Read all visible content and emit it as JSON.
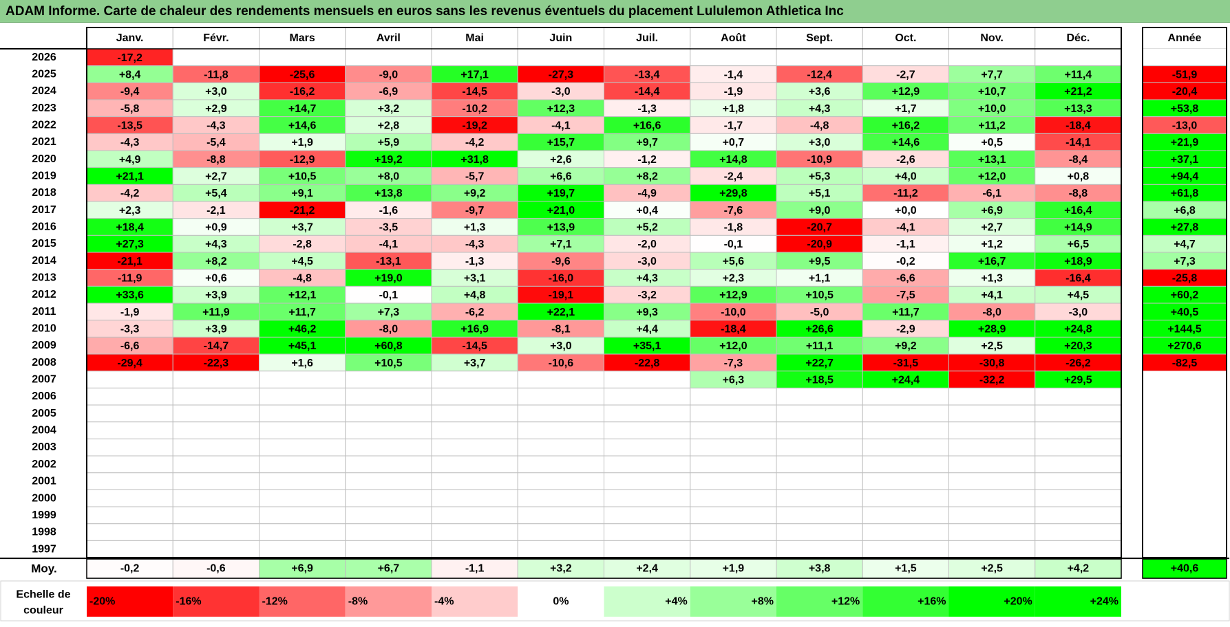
{
  "title": "ADAM Informe. Carte de chaleur des rendements mensuels en euros sans les revenus éventuels du placement Lululemon Athletica Inc",
  "chart_data": {
    "type": "heatmap",
    "months": [
      "Janv.",
      "Févr.",
      "Mars",
      "Avril",
      "Mai",
      "Juin",
      "Juil.",
      "Août",
      "Sept.",
      "Oct.",
      "Nov.",
      "Déc."
    ],
    "annual_header": "Année",
    "avg_label": "Moy.",
    "scale_label_lines": [
      "Echelle de",
      "couleur"
    ],
    "years": [
      "2026",
      "2025",
      "2024",
      "2023",
      "2022",
      "2021",
      "2020",
      "2019",
      "2018",
      "2017",
      "2016",
      "2015",
      "2014",
      "2013",
      "2012",
      "2011",
      "2010",
      "2009",
      "2008",
      "2007",
      "2006",
      "2005",
      "2004",
      "2003",
      "2002",
      "2001",
      "2000",
      "1999",
      "1998",
      "1997"
    ],
    "values": [
      [
        "-17,2",
        null,
        null,
        null,
        null,
        null,
        null,
        null,
        null,
        null,
        null,
        null
      ],
      [
        "+8,4",
        "-11,8",
        "-25,6",
        "-9,0",
        "+17,1",
        "-27,3",
        "-13,4",
        "-1,4",
        "-12,4",
        "-2,7",
        "+7,7",
        "+11,4"
      ],
      [
        "-9,4",
        "+3,0",
        "-16,2",
        "-6,9",
        "-14,5",
        "-3,0",
        "-14,4",
        "-1,9",
        "+3,6",
        "+12,9",
        "+10,7",
        "+21,2"
      ],
      [
        "-5,8",
        "+2,9",
        "+14,7",
        "+3,2",
        "-10,2",
        "+12,3",
        "-1,3",
        "+1,8",
        "+4,3",
        "+1,7",
        "+10,0",
        "+13,3"
      ],
      [
        "-13,5",
        "-4,3",
        "+14,6",
        "+2,8",
        "-19,2",
        "-4,1",
        "+16,6",
        "-1,7",
        "-4,8",
        "+16,2",
        "+11,2",
        "-18,4"
      ],
      [
        "-4,3",
        "-5,4",
        "+1,9",
        "+5,9",
        "-4,2",
        "+15,7",
        "+9,7",
        "+0,7",
        "+3,0",
        "+14,6",
        "+0,5",
        "-14,1"
      ],
      [
        "+4,9",
        "-8,8",
        "-12,9",
        "+19,2",
        "+31,8",
        "+2,6",
        "-1,2",
        "+14,8",
        "-10,9",
        "-2,6",
        "+13,1",
        "-8,4"
      ],
      [
        "+21,1",
        "+2,7",
        "+10,5",
        "+8,0",
        "-5,7",
        "+6,6",
        "+8,2",
        "-2,4",
        "+5,3",
        "+4,0",
        "+12,0",
        "+0,8"
      ],
      [
        "-4,2",
        "+5,4",
        "+9,1",
        "+13,8",
        "+9,2",
        "+19,7",
        "-4,9",
        "+29,8",
        "+5,1",
        "-11,2",
        "-6,1",
        "-8,8"
      ],
      [
        "+2,3",
        "-2,1",
        "-21,2",
        "-1,6",
        "-9,7",
        "+21,0",
        "+0,4",
        "-7,6",
        "+9,0",
        "+0,0",
        "+6,9",
        "+16,4"
      ],
      [
        "+18,4",
        "+0,9",
        "+3,7",
        "-3,5",
        "+1,3",
        "+13,9",
        "+5,2",
        "-1,8",
        "-20,7",
        "-4,1",
        "+2,7",
        "+14,9"
      ],
      [
        "+27,3",
        "+4,3",
        "-2,8",
        "-4,1",
        "-4,3",
        "+7,1",
        "-2,0",
        "-0,1",
        "-20,9",
        "-1,1",
        "+1,2",
        "+6,5"
      ],
      [
        "-21,1",
        "+8,2",
        "+4,5",
        "-13,1",
        "-1,3",
        "-9,6",
        "-3,0",
        "+5,6",
        "+9,5",
        "-0,2",
        "+16,7",
        "+18,9"
      ],
      [
        "-11,9",
        "+0,6",
        "-4,8",
        "+19,0",
        "+3,1",
        "-16,0",
        "+4,3",
        "+2,3",
        "+1,1",
        "-6,6",
        "+1,3",
        "-16,4"
      ],
      [
        "+33,6",
        "+3,9",
        "+12,1",
        "-0,1",
        "+4,8",
        "-19,1",
        "-3,2",
        "+12,9",
        "+10,5",
        "-7,5",
        "+4,1",
        "+4,5"
      ],
      [
        "-1,9",
        "+11,9",
        "+11,7",
        "+7,3",
        "-6,2",
        "+22,1",
        "+9,3",
        "-10,0",
        "-5,0",
        "+11,7",
        "-8,0",
        "-3,0"
      ],
      [
        "-3,3",
        "+3,9",
        "+46,2",
        "-8,0",
        "+16,9",
        "-8,1",
        "+4,4",
        "-18,4",
        "+26,6",
        "-2,9",
        "+28,9",
        "+24,8"
      ],
      [
        "-6,6",
        "-14,7",
        "+45,1",
        "+60,8",
        "-14,5",
        "+3,0",
        "+35,1",
        "+12,0",
        "+11,1",
        "+9,2",
        "+2,5",
        "+20,3"
      ],
      [
        "-29,4",
        "-22,3",
        "+1,6",
        "+10,5",
        "+3,7",
        "-10,6",
        "-22,8",
        "-7,3",
        "+22,7",
        "-31,5",
        "-30,8",
        "-26,2"
      ],
      [
        null,
        null,
        null,
        null,
        null,
        null,
        null,
        "+6,3",
        "+18,5",
        "+24,4",
        "-32,2",
        "+29,5"
      ],
      [
        null,
        null,
        null,
        null,
        null,
        null,
        null,
        null,
        null,
        null,
        null,
        null
      ],
      [
        null,
        null,
        null,
        null,
        null,
        null,
        null,
        null,
        null,
        null,
        null,
        null
      ],
      [
        null,
        null,
        null,
        null,
        null,
        null,
        null,
        null,
        null,
        null,
        null,
        null
      ],
      [
        null,
        null,
        null,
        null,
        null,
        null,
        null,
        null,
        null,
        null,
        null,
        null
      ],
      [
        null,
        null,
        null,
        null,
        null,
        null,
        null,
        null,
        null,
        null,
        null,
        null
      ],
      [
        null,
        null,
        null,
        null,
        null,
        null,
        null,
        null,
        null,
        null,
        null,
        null
      ],
      [
        null,
        null,
        null,
        null,
        null,
        null,
        null,
        null,
        null,
        null,
        null,
        null
      ],
      [
        null,
        null,
        null,
        null,
        null,
        null,
        null,
        null,
        null,
        null,
        null,
        null
      ],
      [
        null,
        null,
        null,
        null,
        null,
        null,
        null,
        null,
        null,
        null,
        null,
        null
      ],
      [
        null,
        null,
        null,
        null,
        null,
        null,
        null,
        null,
        null,
        null,
        null,
        null
      ]
    ],
    "annual": [
      null,
      "-51,9",
      "-20,4",
      "+53,8",
      "-13,0",
      "+21,9",
      "+37,1",
      "+94,4",
      "+61,8",
      "+6,8",
      "+27,8",
      "+4,7",
      "+7,3",
      "-25,8",
      "+60,2",
      "+40,5",
      "+144,5",
      "+270,6",
      "-82,5",
      null,
      null,
      null,
      null,
      null,
      null,
      null,
      null,
      null,
      null,
      null
    ],
    "averages": [
      "-0,2",
      "-0,6",
      "+6,9",
      "+6,7",
      "-1,1",
      "+3,2",
      "+2,4",
      "+1,9",
      "+3,8",
      "+1,5",
      "+2,5",
      "+4,2"
    ],
    "average_annual": "+40,6",
    "scale": [
      {
        "label": "-20%",
        "value": -20
      },
      {
        "label": "-16%",
        "value": -16
      },
      {
        "label": "-12%",
        "value": -12
      },
      {
        "label": "-8%",
        "value": -8
      },
      {
        "label": "-4%",
        "value": -4
      },
      {
        "label": "0%",
        "value": 0
      },
      {
        "label": "+4%",
        "value": 4
      },
      {
        "label": "+8%",
        "value": 8
      },
      {
        "label": "+12%",
        "value": 12
      },
      {
        "label": "+16%",
        "value": 16
      },
      {
        "label": "+20%",
        "value": 20
      },
      {
        "label": "+24%",
        "value": 24
      }
    ],
    "colors": {
      "negative": "#ff0000",
      "positive": "#00ff00",
      "neutral": "#ffffff",
      "title_bar": "#8fce8f"
    }
  }
}
